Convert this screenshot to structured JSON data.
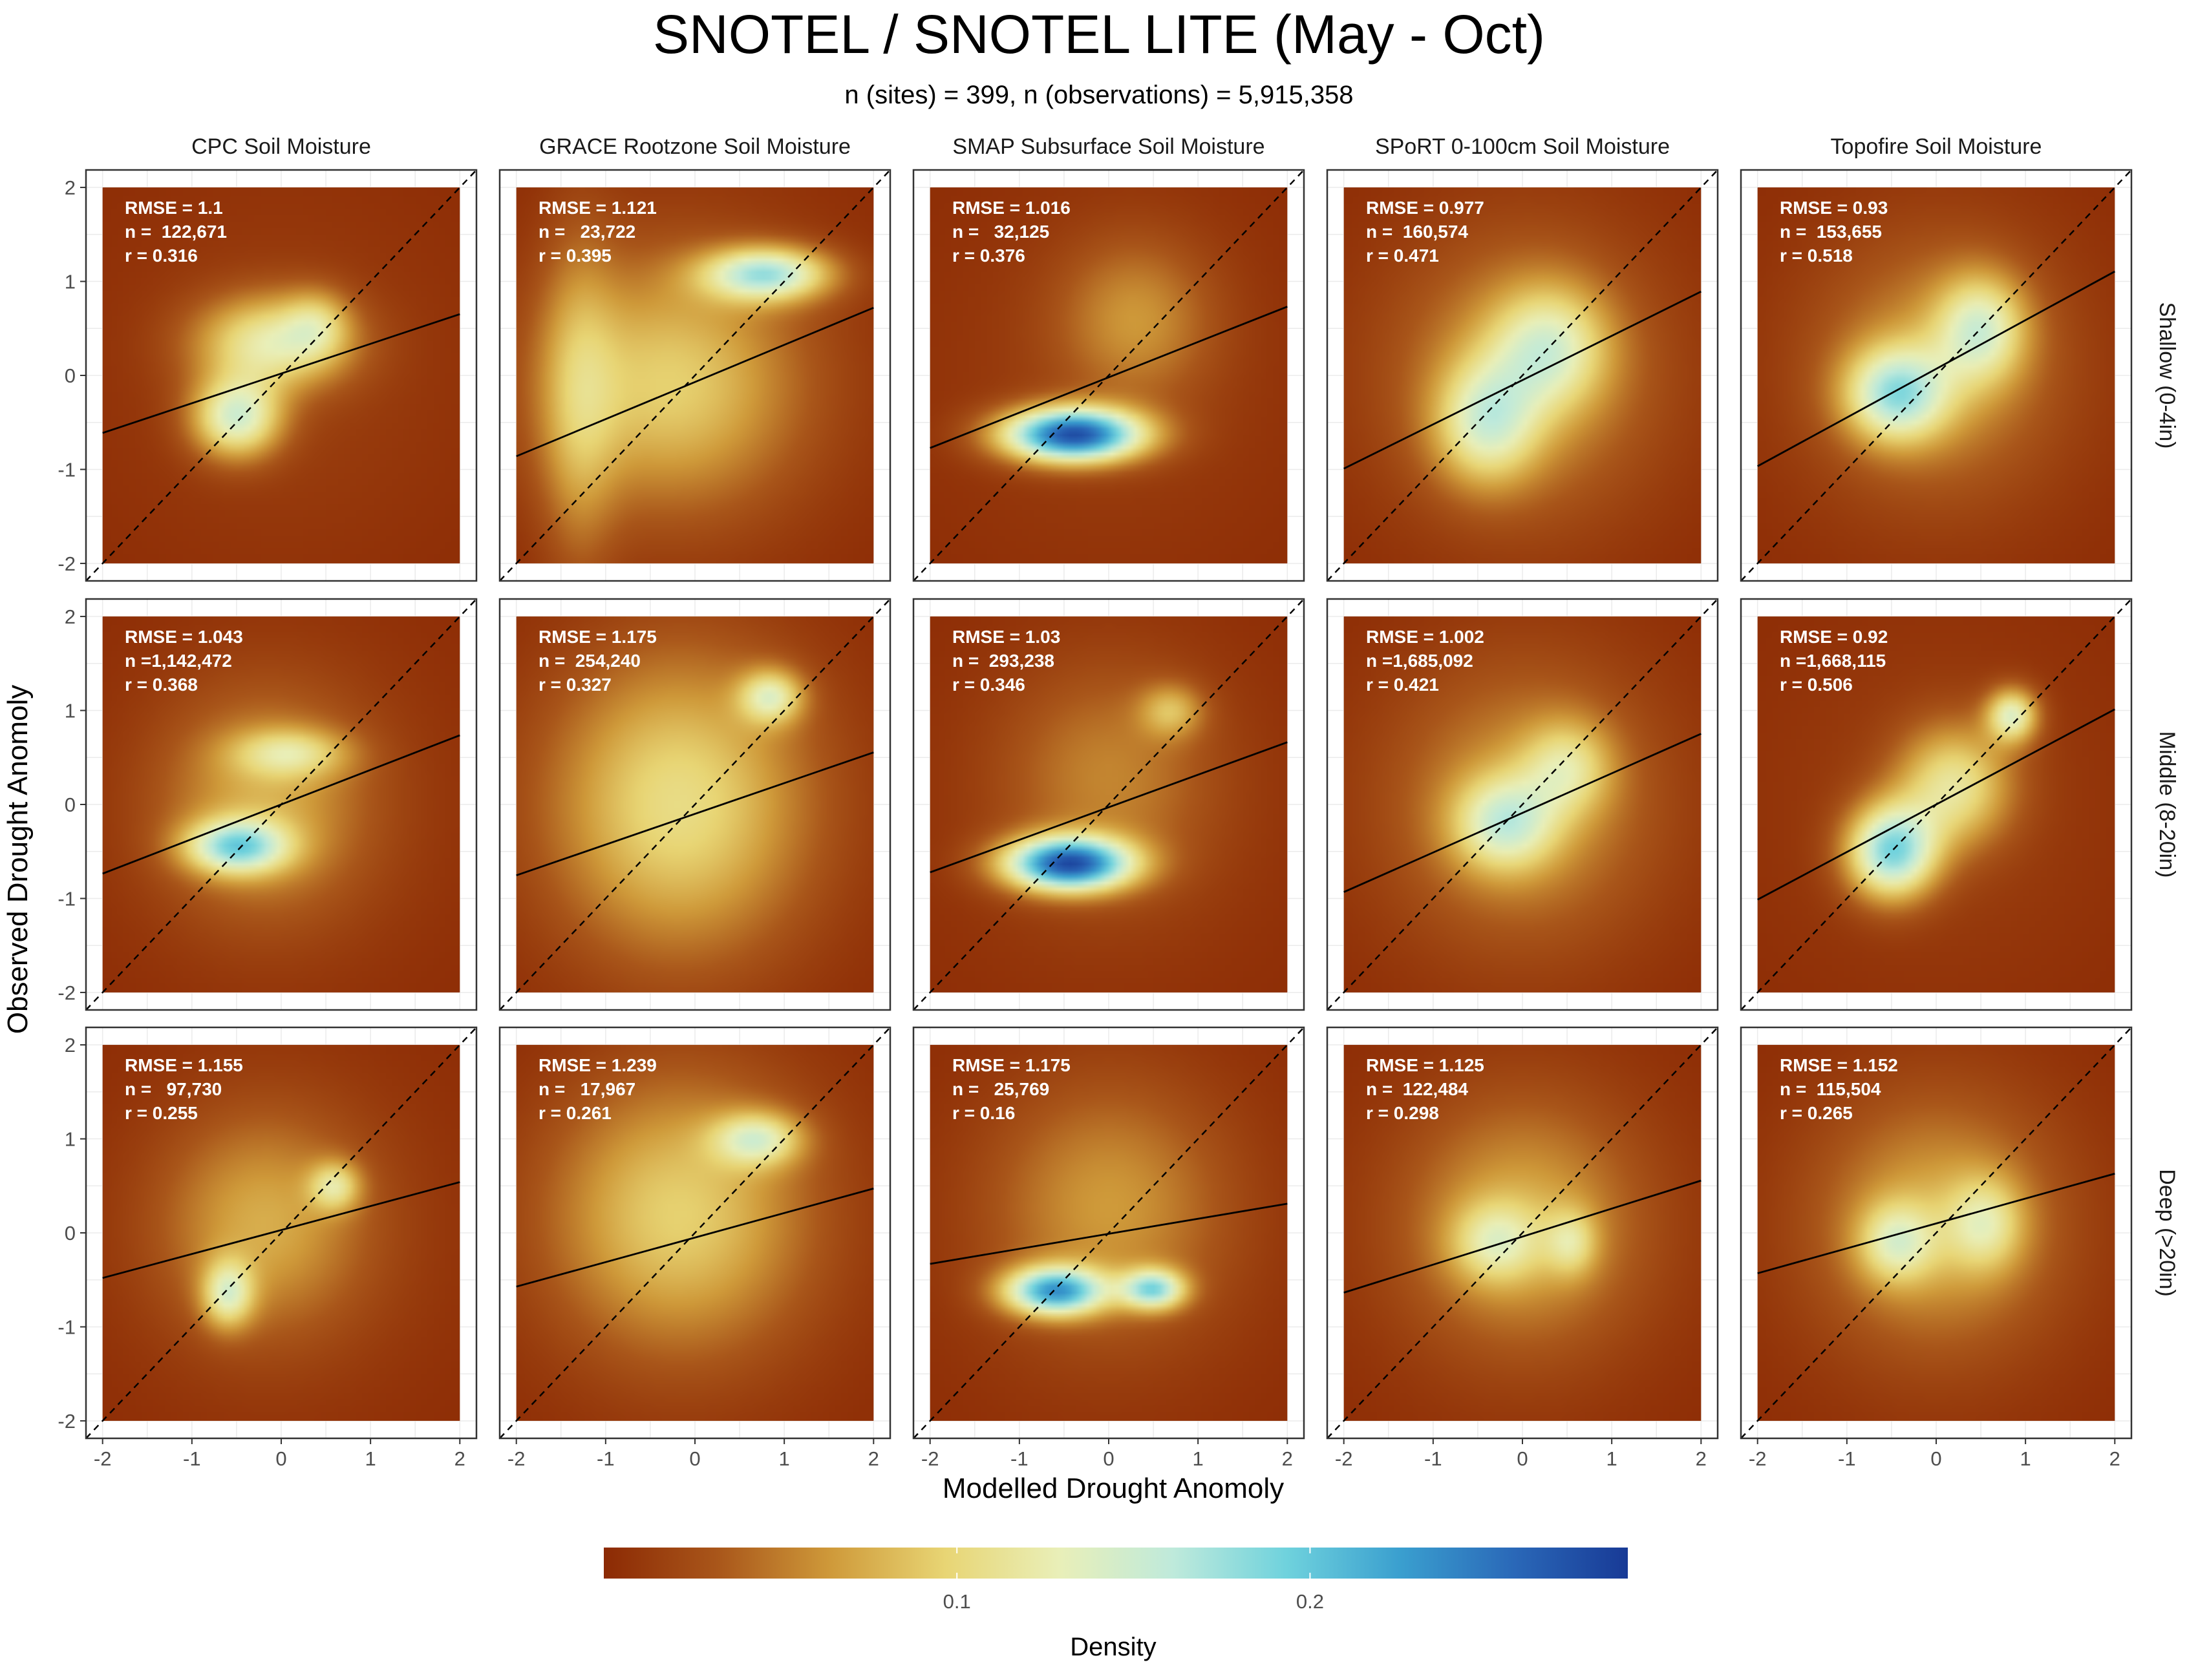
{
  "chart_data": {
    "type": "heatmap",
    "title": "SNOTEL / SNOTEL LITE (May - Oct)",
    "subtitle": "n (sites) = 399, n (observations) = 5,915,358",
    "xlabel": "Modelled Drought Anomoly",
    "ylabel": "Observed Drought Anomoly",
    "xlim": [
      -2,
      2
    ],
    "ylim": [
      -2,
      2
    ],
    "x_ticks": [
      "-2",
      "-1",
      "0",
      "1",
      "2"
    ],
    "y_ticks": [
      "-2",
      "-1",
      "0",
      "1",
      "2"
    ],
    "grid": true,
    "reference_line": "1:1 dashed",
    "columns": [
      "CPC Soil Moisture",
      "GRACE Rootzone Soil Moisture",
      "SMAP Subsurface Soil Moisture",
      "SPoRT 0-100cm Soil Moisture",
      "Topofire Soil Moisture"
    ],
    "rows": [
      "Shallow (0-4in)",
      "Middle (8-20in)",
      "Deep (>20in)"
    ],
    "colorbar": {
      "title": "Density",
      "tick_labels": [
        "0.1",
        "0.2"
      ],
      "tick_values": [
        0.1,
        0.2
      ],
      "range": [
        0,
        0.29
      ],
      "colors": [
        "#8c2a04",
        "#a9561a",
        "#cf9a3a",
        "#e8d574",
        "#e9efb8",
        "#bfeadb",
        "#6fd2dd",
        "#3a9fcf",
        "#2a68b8",
        "#183a96"
      ]
    },
    "panels": [
      {
        "row": 0,
        "col": 0,
        "rmse": "RMSE = 1.1",
        "n": "n =  122,671",
        "r": "r = 0.316",
        "slope": 0.316,
        "intercept": 0.02,
        "blobs": [
          {
            "x": -0.5,
            "y": -0.45,
            "sx": 0.35,
            "sy": 0.3,
            "w": 0.13
          },
          {
            "x": -0.1,
            "y": 0.35,
            "sx": 0.6,
            "sy": 0.35,
            "w": 0.11
          },
          {
            "x": 0.4,
            "y": 0.55,
            "sx": 0.25,
            "sy": 0.25,
            "w": 0.05
          }
        ]
      },
      {
        "row": 0,
        "col": 1,
        "rmse": "RMSE = 1.121",
        "n": "n =   23,722",
        "r": "r = 0.395",
        "slope": 0.395,
        "intercept": -0.07,
        "blobs": [
          {
            "x": 0.8,
            "y": 1.08,
            "sx": 0.5,
            "sy": 0.2,
            "w": 0.15
          },
          {
            "x": -0.3,
            "y": -0.1,
            "sx": 1.0,
            "sy": 0.9,
            "w": 0.08
          },
          {
            "x": -1.3,
            "y": -0.3,
            "sx": 0.3,
            "sy": 1.3,
            "w": 0.05
          }
        ]
      },
      {
        "row": 0,
        "col": 2,
        "rmse": "RMSE = 1.016",
        "n": "n =   32,125",
        "r": "r = 0.376",
        "slope": 0.376,
        "intercept": -0.02,
        "blobs": [
          {
            "x": -0.4,
            "y": -0.63,
            "sx": 0.55,
            "sy": 0.2,
            "w": 0.26
          },
          {
            "x": 0.3,
            "y": 0.6,
            "sx": 0.6,
            "sy": 0.6,
            "w": 0.05
          }
        ]
      },
      {
        "row": 0,
        "col": 3,
        "rmse": "RMSE = 0.977",
        "n": "n =  160,574",
        "r": "r = 0.471",
        "slope": 0.471,
        "intercept": -0.05,
        "blobs": [
          {
            "x": -0.4,
            "y": -0.5,
            "sx": 0.4,
            "sy": 0.45,
            "w": 0.1
          },
          {
            "x": 0.3,
            "y": 0.3,
            "sx": 0.45,
            "sy": 0.45,
            "w": 0.09
          },
          {
            "x": 0.0,
            "y": 0.0,
            "sx": 1.0,
            "sy": 1.0,
            "w": 0.05
          }
        ]
      },
      {
        "row": 0,
        "col": 4,
        "rmse": "RMSE = 0.93",
        "n": "n =  153,655",
        "r": "r = 0.518",
        "slope": 0.518,
        "intercept": 0.07,
        "blobs": [
          {
            "x": -0.45,
            "y": -0.2,
            "sx": 0.4,
            "sy": 0.35,
            "w": 0.13
          },
          {
            "x": 0.5,
            "y": 0.5,
            "sx": 0.35,
            "sy": 0.4,
            "w": 0.1
          },
          {
            "x": 0.0,
            "y": 0.1,
            "sx": 0.9,
            "sy": 0.9,
            "w": 0.05
          }
        ]
      },
      {
        "row": 1,
        "col": 0,
        "rmse": "RMSE = 1.043",
        "n": "n =1,142,472",
        "r": "r = 0.368",
        "slope": 0.368,
        "intercept": 0.0,
        "blobs": [
          {
            "x": -0.5,
            "y": -0.45,
            "sx": 0.4,
            "sy": 0.2,
            "w": 0.14
          },
          {
            "x": 0.1,
            "y": 0.55,
            "sx": 0.45,
            "sy": 0.18,
            "w": 0.07
          },
          {
            "x": -0.2,
            "y": 0.0,
            "sx": 0.8,
            "sy": 0.8,
            "w": 0.06
          }
        ]
      },
      {
        "row": 1,
        "col": 1,
        "rmse": "RMSE = 1.175",
        "n": "n =  254,240",
        "r": "r = 0.327",
        "slope": 0.327,
        "intercept": -0.1,
        "blobs": [
          {
            "x": 0.85,
            "y": 1.15,
            "sx": 0.25,
            "sy": 0.2,
            "w": 0.1
          },
          {
            "x": -0.2,
            "y": 0.0,
            "sx": 1.0,
            "sy": 1.1,
            "w": 0.09
          }
        ]
      },
      {
        "row": 1,
        "col": 2,
        "rmse": "RMSE = 1.03",
        "n": "n =  293,238",
        "r": "r = 0.346",
        "slope": 0.346,
        "intercept": -0.03,
        "blobs": [
          {
            "x": -0.45,
            "y": -0.63,
            "sx": 0.5,
            "sy": 0.2,
            "w": 0.25
          },
          {
            "x": 0.7,
            "y": 1.0,
            "sx": 0.25,
            "sy": 0.2,
            "w": 0.06
          },
          {
            "x": 0.0,
            "y": 0.3,
            "sx": 0.8,
            "sy": 0.8,
            "w": 0.04
          }
        ]
      },
      {
        "row": 1,
        "col": 3,
        "rmse": "RMSE = 1.002",
        "n": "n =1,685,092",
        "r": "r = 0.421",
        "slope": 0.421,
        "intercept": -0.09,
        "blobs": [
          {
            "x": -0.2,
            "y": -0.2,
            "sx": 0.4,
            "sy": 0.35,
            "w": 0.1
          },
          {
            "x": 0.5,
            "y": 0.4,
            "sx": 0.35,
            "sy": 0.35,
            "w": 0.07
          },
          {
            "x": 0.0,
            "y": 0.0,
            "sx": 1.0,
            "sy": 1.0,
            "w": 0.05
          }
        ]
      },
      {
        "row": 1,
        "col": 4,
        "rmse": "RMSE = 0.92",
        "n": "n =1,668,115",
        "r": "r = 0.506",
        "slope": 0.506,
        "intercept": 0.0,
        "blobs": [
          {
            "x": -0.5,
            "y": -0.5,
            "sx": 0.35,
            "sy": 0.35,
            "w": 0.17
          },
          {
            "x": 0.85,
            "y": 0.95,
            "sx": 0.2,
            "sy": 0.2,
            "w": 0.12
          },
          {
            "x": 0.2,
            "y": 0.2,
            "sx": 0.45,
            "sy": 0.45,
            "w": 0.1
          }
        ]
      },
      {
        "row": 2,
        "col": 0,
        "rmse": "RMSE = 1.155",
        "n": "n =   97,730",
        "r": "r = 0.255",
        "slope": 0.255,
        "intercept": 0.03,
        "blobs": [
          {
            "x": -0.6,
            "y": -0.65,
            "sx": 0.2,
            "sy": 0.25,
            "w": 0.1
          },
          {
            "x": 0.6,
            "y": 0.5,
            "sx": 0.2,
            "sy": 0.18,
            "w": 0.08
          },
          {
            "x": -0.2,
            "y": 0.1,
            "sx": 0.8,
            "sy": 0.8,
            "w": 0.06
          }
        ]
      },
      {
        "row": 2,
        "col": 1,
        "rmse": "RMSE = 1.239",
        "n": "n =   17,967",
        "r": "r = 0.261",
        "slope": 0.261,
        "intercept": -0.05,
        "blobs": [
          {
            "x": 0.7,
            "y": 1.0,
            "sx": 0.35,
            "sy": 0.2,
            "w": 0.1
          },
          {
            "x": -0.2,
            "y": 0.2,
            "sx": 1.0,
            "sy": 1.0,
            "w": 0.08
          }
        ]
      },
      {
        "row": 2,
        "col": 2,
        "rmse": "RMSE = 1.175",
        "n": "n =   25,769",
        "r": "r = 0.16",
        "slope": 0.16,
        "intercept": -0.01,
        "blobs": [
          {
            "x": -0.6,
            "y": -0.62,
            "sx": 0.4,
            "sy": 0.18,
            "w": 0.2
          },
          {
            "x": 0.5,
            "y": -0.6,
            "sx": 0.25,
            "sy": 0.15,
            "w": 0.15
          },
          {
            "x": 0.0,
            "y": 0.3,
            "sx": 0.9,
            "sy": 0.9,
            "w": 0.05
          }
        ]
      },
      {
        "row": 2,
        "col": 3,
        "rmse": "RMSE = 1.125",
        "n": "n =  122,484",
        "r": "r = 0.298",
        "slope": 0.298,
        "intercept": -0.04,
        "blobs": [
          {
            "x": -0.3,
            "y": -0.1,
            "sx": 0.35,
            "sy": 0.3,
            "w": 0.07
          },
          {
            "x": 0.55,
            "y": -0.1,
            "sx": 0.2,
            "sy": 0.25,
            "w": 0.06
          },
          {
            "x": 0.0,
            "y": 0.1,
            "sx": 0.9,
            "sy": 0.9,
            "w": 0.06
          }
        ]
      },
      {
        "row": 2,
        "col": 4,
        "rmse": "RMSE = 1.152",
        "n": "n =  115,504",
        "r": "r = 0.265",
        "slope": 0.265,
        "intercept": 0.1,
        "blobs": [
          {
            "x": -0.45,
            "y": -0.1,
            "sx": 0.3,
            "sy": 0.3,
            "w": 0.08
          },
          {
            "x": 0.55,
            "y": 0.1,
            "sx": 0.3,
            "sy": 0.35,
            "w": 0.07
          },
          {
            "x": 0.0,
            "y": 0.1,
            "sx": 0.9,
            "sy": 0.9,
            "w": 0.06
          }
        ]
      }
    ]
  }
}
